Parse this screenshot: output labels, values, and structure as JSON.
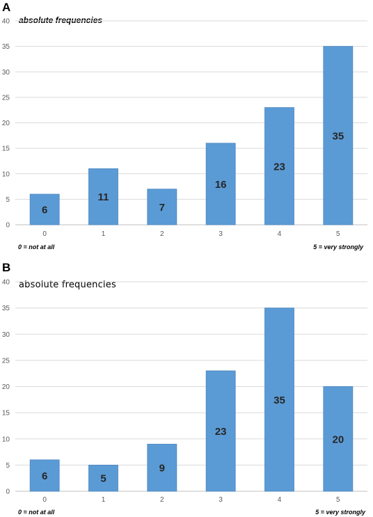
{
  "chart_data": [
    {
      "panel": "A",
      "type": "bar",
      "ylabel": "absolute frequencies",
      "categories": [
        "0",
        "1",
        "2",
        "3",
        "4",
        "5"
      ],
      "values": [
        6,
        11,
        7,
        16,
        23,
        35
      ],
      "ylim": [
        0,
        40
      ],
      "yticks": [
        "0",
        "5",
        "10",
        "15",
        "20",
        "25",
        "30",
        "35",
        "40"
      ],
      "annotation_left": "0 = not at all",
      "annotation_right": "5 = very strongly",
      "grid": true,
      "bar_color": "#5b9bd5"
    },
    {
      "panel": "B",
      "type": "bar",
      "ylabel": "absolute  frequencies",
      "categories": [
        "0",
        "1",
        "2",
        "3",
        "4",
        "5"
      ],
      "values": [
        6,
        5,
        9,
        23,
        35,
        20
      ],
      "ylim": [
        0,
        40
      ],
      "yticks": [
        "0",
        "5",
        "10",
        "15",
        "20",
        "25",
        "30",
        "35",
        "40"
      ],
      "annotation_left": "0 = not at all",
      "annotation_right": "5 = very strongly",
      "grid": true,
      "bar_color": "#5b9bd5"
    }
  ]
}
